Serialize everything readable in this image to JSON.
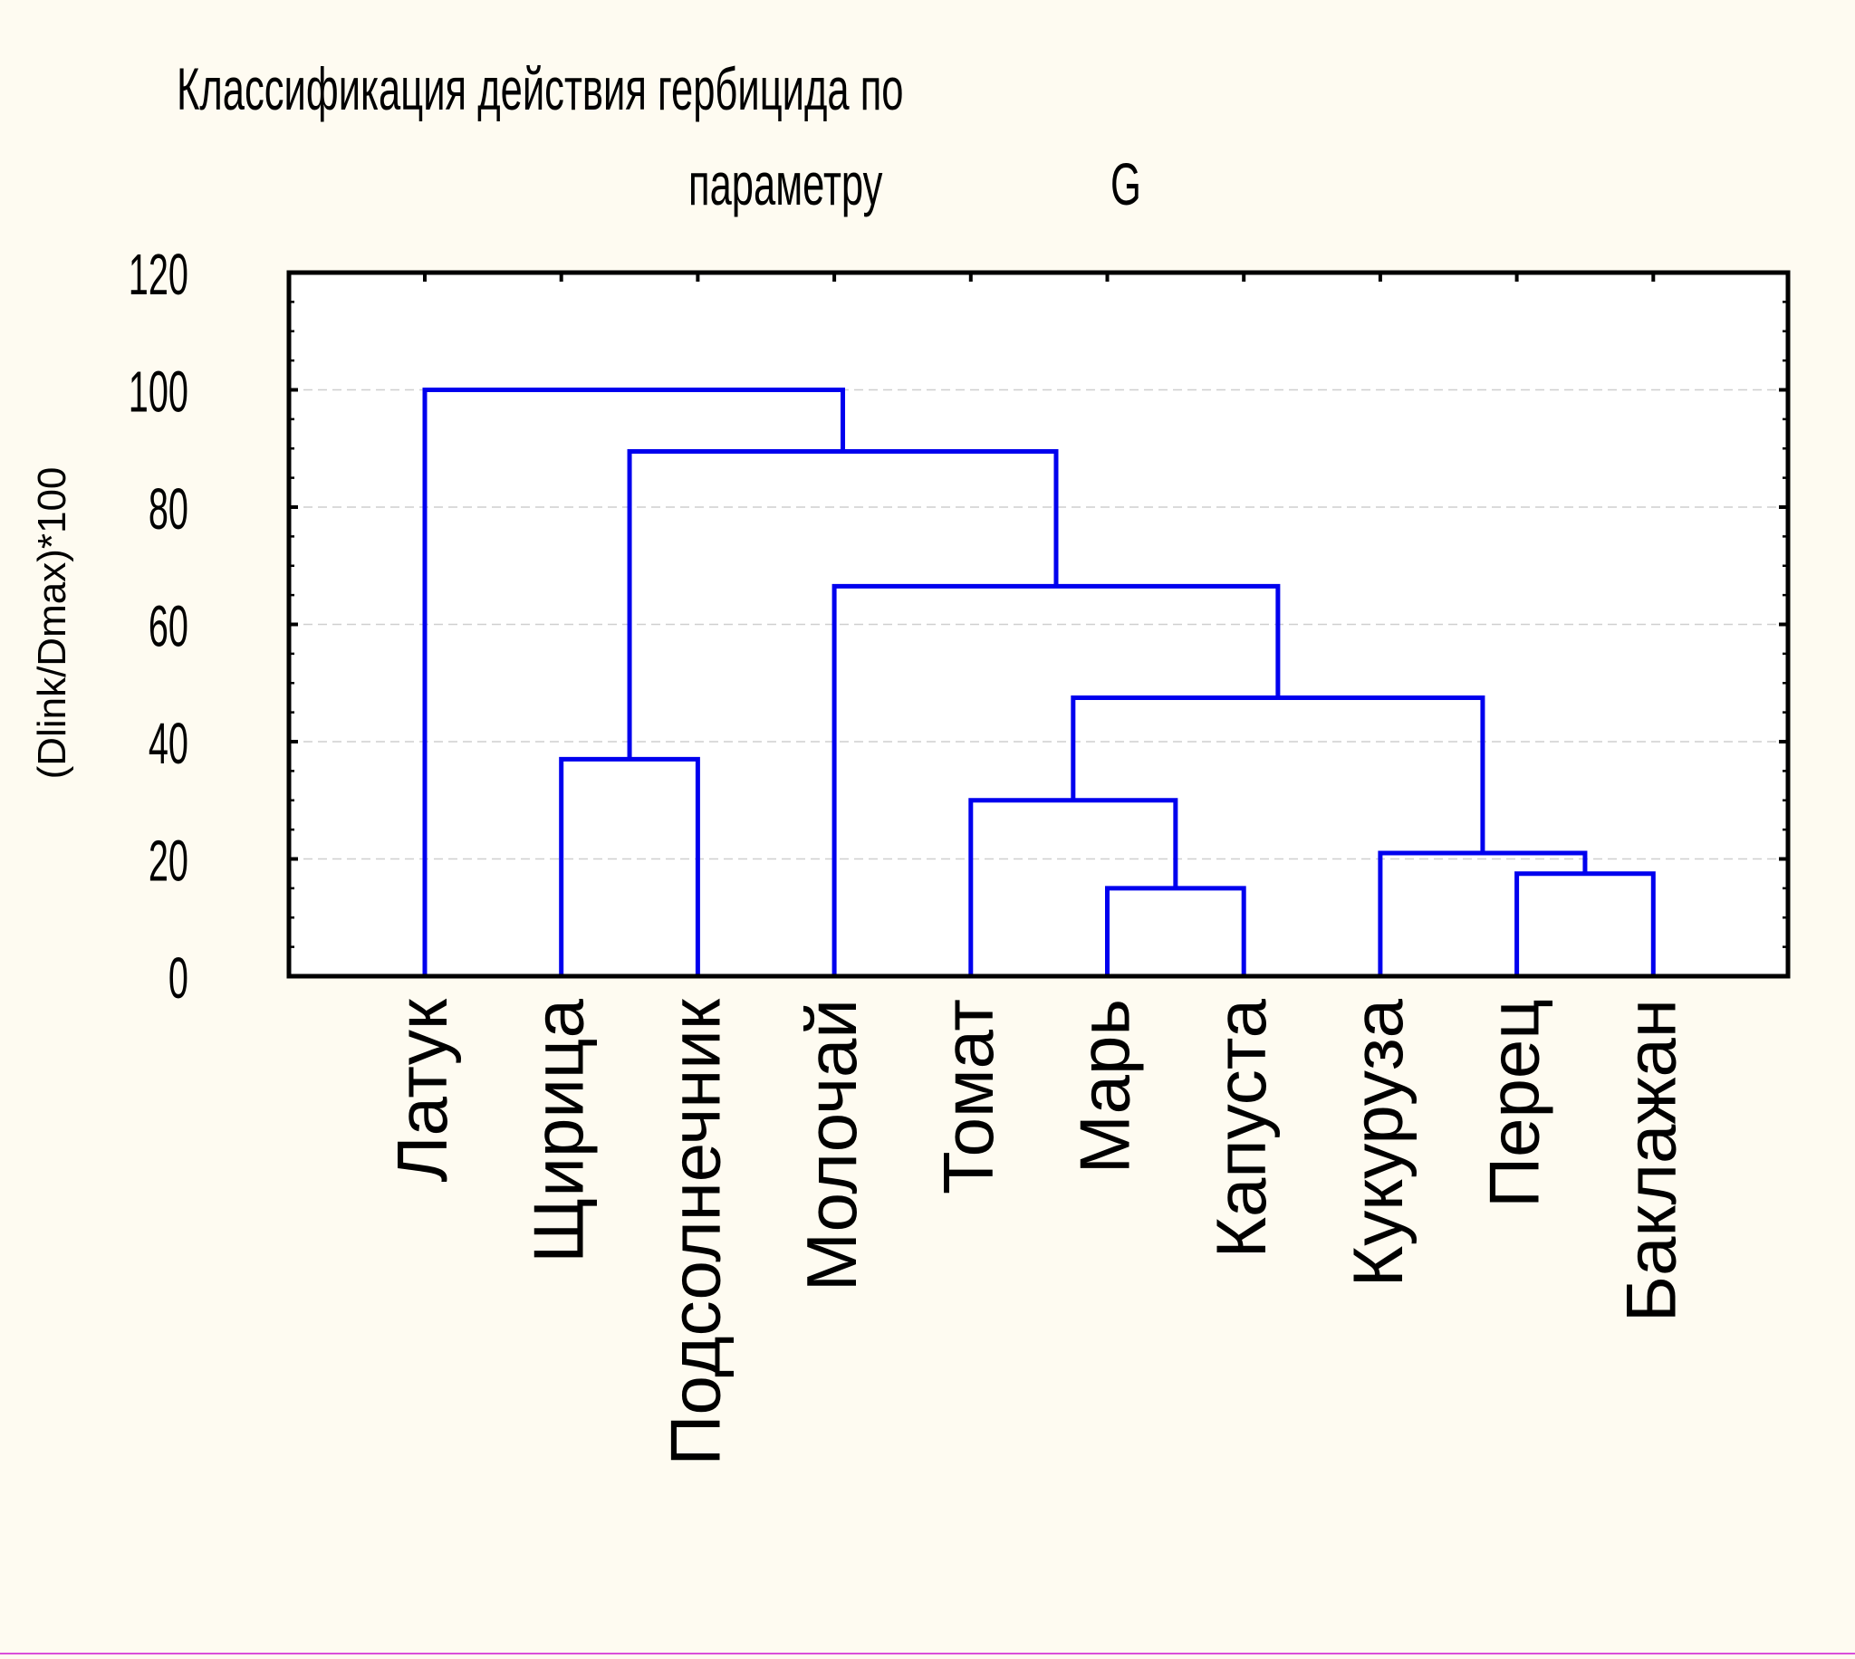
{
  "chart_data": {
    "type": "dendrogram",
    "title_line1": "Классификация действия гербицида по",
    "title_line2a": "параметру",
    "title_line2b": "G",
    "ylabel": "(Dlink/Dmax)*100",
    "xlabel": "",
    "ylim": [
      0,
      120
    ],
    "yticks": [
      0,
      20,
      40,
      60,
      80,
      100,
      120
    ],
    "grid": true,
    "line_color": "#0000ee",
    "leaves": [
      "Латук",
      "Щирица",
      "Подсолнечник",
      "Молочай",
      "Томат",
      "Марь",
      "Капуста",
      "Кукуруза",
      "Перец",
      "Баклажан"
    ],
    "merges": [
      {
        "left": "Марь",
        "right": "Капуста",
        "height": 15
      },
      {
        "left": "Перец",
        "right": "Баклажан",
        "height": 17.5
      },
      {
        "left": "Кукуруза",
        "right": "Перец+Баклажан",
        "height": 21
      },
      {
        "left": "Томат",
        "right": "Марь+Капуста",
        "height": 30
      },
      {
        "left": "Щирица",
        "right": "Подсолнечник",
        "height": 37
      },
      {
        "left": "Томат+Марь+Капуста",
        "right": "Кукуруза+Перец+Баклажан",
        "height": 47.5
      },
      {
        "left": "Молочай",
        "right": "Томат…Баклажан",
        "height": 66.5
      },
      {
        "left": "Щирица+Подсолнечник",
        "right": "Молочай…Баклажан",
        "height": 89.5
      },
      {
        "left": "Латук",
        "right": "Щирица…Баклажан",
        "height": 100
      }
    ]
  }
}
